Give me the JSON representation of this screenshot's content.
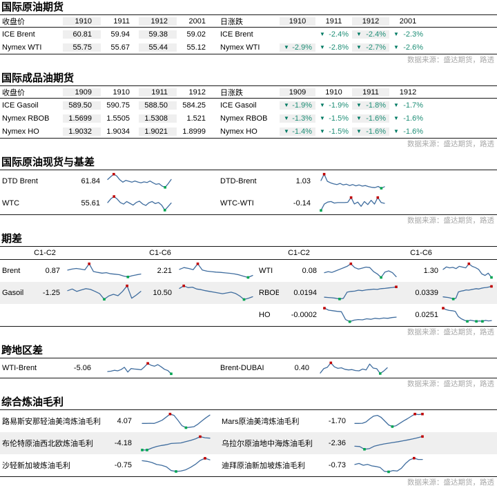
{
  "source_note": "数据来源：盛达期货，路透",
  "colors": {
    "down_triangle": "#007a63",
    "down_text": "#1e8e76",
    "spark_line": "#3e6c9e",
    "spark_high": "#c00000",
    "spark_low": "#00a551",
    "shade": "#efefef"
  },
  "sections": {
    "crude_futures": {
      "title": "国际原油期货",
      "close_label": "收盘价",
      "change_label": "日涨跌",
      "months": [
        "1910",
        "1911",
        "1912",
        "2001"
      ],
      "rows": [
        {
          "name": "ICE Brent",
          "close": [
            "60.81",
            "59.94",
            "59.38",
            "59.02"
          ],
          "change": [
            "",
            "-2.4%",
            "-2.4%",
            "-2.3%"
          ]
        },
        {
          "name": "Nymex WTI",
          "close": [
            "55.75",
            "55.67",
            "55.44",
            "55.12"
          ],
          "change": [
            "-2.9%",
            "-2.8%",
            "-2.7%",
            "-2.6%"
          ]
        }
      ]
    },
    "product_futures": {
      "title": "国际成品油期货",
      "close_label": "收盘价",
      "change_label": "日涨跌",
      "months": [
        "1909",
        "1910",
        "1911",
        "1912"
      ],
      "rows": [
        {
          "name": "ICE Gasoil",
          "close": [
            "589.50",
            "590.75",
            "588.50",
            "584.25"
          ],
          "change": [
            "-1.9%",
            "-1.9%",
            "-1.8%",
            "-1.7%"
          ]
        },
        {
          "name": "Nymex RBOB",
          "close": [
            "1.5699",
            "1.5505",
            "1.5308",
            "1.521"
          ],
          "change": [
            "-1.3%",
            "-1.5%",
            "-1.6%",
            "-1.6%"
          ]
        },
        {
          "name": "Nymex HO",
          "close": [
            "1.9032",
            "1.9034",
            "1.9021",
            "1.8999"
          ],
          "change": [
            "-1.4%",
            "-1.5%",
            "-1.6%",
            "-1.6%"
          ]
        }
      ]
    },
    "spot_basis": {
      "title": "国际原油现货与基差",
      "left": [
        {
          "name": "DTD Brent",
          "value": "61.84"
        },
        {
          "name": "WTC",
          "value": "55.61"
        }
      ],
      "right": [
        {
          "name": "DTD-Brent",
          "value": "1.03"
        },
        {
          "name": "WTC-WTI",
          "value": "-0.14"
        }
      ]
    },
    "term_spread": {
      "title": "期差",
      "col1": "C1-C2",
      "col2": "C1-C6",
      "left": [
        {
          "name": "Brent",
          "v1": "0.87",
          "v2": "2.21"
        },
        {
          "name": "Gasoil",
          "v1": "-1.25",
          "v2": "10.50"
        }
      ],
      "right": [
        {
          "name": "WTI",
          "v1": "0.08",
          "v2": "1.30"
        },
        {
          "name": "RBOB",
          "v1": "0.0194",
          "v2": "0.0339"
        },
        {
          "name": "HO",
          "v1": "-0.0002",
          "v2": "0.0251"
        }
      ]
    },
    "region_spread": {
      "title": "跨地区差",
      "left": [
        {
          "name": "WTI-Brent",
          "value": "-5.06"
        }
      ],
      "right": [
        {
          "name": "Brent-DUBAI",
          "value": "0.40"
        }
      ]
    },
    "refining_margin": {
      "title": "综合炼油毛利",
      "left": [
        {
          "name": "路易斯安那轻油美湾炼油毛利",
          "value": "4.07"
        },
        {
          "name": "布伦特原油西北欧炼油毛利",
          "value": "-4.18"
        },
        {
          "name": "沙轻新加坡炼油毛利",
          "value": "-0.75"
        }
      ],
      "right": [
        {
          "name": "Mars原油美湾炼油毛利",
          "value": "-1.70"
        },
        {
          "name": "乌拉尔原油地中海炼油毛利",
          "value": "-2.36"
        },
        {
          "name": "迪拜原油新加坡炼油毛利",
          "value": "-0.73"
        }
      ]
    }
  },
  "sparklines": {
    "dtd_brent": [
      0.62,
      0.8,
      0.97,
      0.85,
      0.6,
      0.44,
      0.56,
      0.5,
      0.44,
      0.52,
      0.45,
      0.4,
      0.46,
      0.42,
      0.52,
      0.4,
      0.3,
      0.34,
      0.18,
      0.1,
      0.34,
      0.62
    ],
    "wtc": [
      0.55,
      0.8,
      0.95,
      0.78,
      0.55,
      0.45,
      0.62,
      0.5,
      0.38,
      0.56,
      0.64,
      0.46,
      0.36,
      0.54,
      0.62,
      0.48,
      0.56,
      0.38,
      0.05,
      0.28,
      0.52
    ],
    "dtd_brent_basis": [
      0.55,
      0.97,
      0.5,
      0.4,
      0.33,
      0.28,
      0.36,
      0.26,
      0.31,
      0.22,
      0.28,
      0.2,
      0.26,
      0.18,
      0.22,
      0.15,
      0.1,
      0.08,
      0.16,
      0.04,
      0.14
    ],
    "wtc_wti": [
      0.03,
      0.45,
      0.58,
      0.62,
      0.52,
      0.55,
      0.55,
      0.55,
      0.57,
      0.88,
      0.46,
      0.58,
      0.3,
      0.62,
      0.42,
      0.7,
      0.45,
      0.88,
      0.55,
      0.5
    ],
    "brent_c1c2": [
      0.55,
      0.62,
      0.66,
      0.62,
      0.57,
      0.97,
      0.46,
      0.4,
      0.35,
      0.38,
      0.31,
      0.28,
      0.25,
      0.16,
      0.1,
      0.18,
      0.24,
      0.29
    ],
    "brent_c1c6": [
      0.6,
      0.72,
      0.66,
      0.58,
      0.97,
      0.56,
      0.48,
      0.45,
      0.42,
      0.4,
      0.37,
      0.34,
      0.3,
      0.24,
      0.15,
      0.07,
      0.2
    ],
    "gasoil_c1c2": [
      0.65,
      0.76,
      0.6,
      0.7,
      0.78,
      0.73,
      0.6,
      0.45,
      0.08,
      0.3,
      0.41,
      0.32,
      0.6,
      0.97,
      0.15,
      0.36,
      0.6
    ],
    "gasoil_c1c6": [
      0.8,
      0.97,
      0.85,
      0.88,
      0.76,
      0.72,
      0.65,
      0.6,
      0.55,
      0.5,
      0.45,
      0.5,
      0.55,
      0.47,
      0.3,
      0.07,
      0.15,
      0.25
    ],
    "wti_c1c2": [
      0.38,
      0.45,
      0.4,
      0.5,
      0.6,
      0.7,
      0.8,
      0.97,
      0.72,
      0.62,
      0.68,
      0.75,
      0.72,
      0.45,
      0.3,
      0.07,
      0.42,
      0.5,
      0.38,
      0.12
    ],
    "wti_c1c6": [
      0.6,
      0.76,
      0.7,
      0.73,
      0.65,
      0.8,
      0.75,
      0.7,
      0.97,
      0.8,
      0.72,
      0.6,
      0.3,
      0.2,
      0.35,
      0.07
    ],
    "rbob_c1c2": [
      0.22,
      0.2,
      0.18,
      0.15,
      0.1,
      0.14,
      0.55,
      0.6,
      0.62,
      0.68,
      0.65,
      0.7,
      0.72,
      0.75,
      0.73,
      0.78,
      0.8,
      0.83,
      0.86,
      0.9
    ],
    "rbob_c1c6": [
      0.24,
      0.22,
      0.2,
      0.16,
      0.1,
      0.15,
      0.57,
      0.62,
      0.65,
      0.7,
      0.68,
      0.72,
      0.75,
      0.78,
      0.76,
      0.81,
      0.84,
      0.86,
      0.89,
      0.93
    ],
    "ho_c1c2": [
      0.95,
      0.82,
      0.78,
      0.74,
      0.72,
      0.2,
      0.06,
      0.16,
      0.2,
      0.18,
      0.25,
      0.22,
      0.28,
      0.25,
      0.3,
      0.28,
      0.33,
      0.36
    ],
    "ho_c1c6": [
      0.95,
      0.85,
      0.8,
      0.78,
      0.74,
      0.4,
      0.25,
      0.16,
      0.08,
      0.16,
      0.12,
      0.08,
      0.11,
      0.08,
      0.15,
      0.11,
      0.13
    ],
    "wti_brent": [
      0.22,
      0.25,
      0.32,
      0.28,
      0.38,
      0.56,
      0.18,
      0.46,
      0.42,
      0.4,
      0.36,
      0.6,
      0.88,
      0.72,
      0.65,
      0.78,
      0.6,
      0.4,
      0.3,
      0.04
    ],
    "brent_dubai": [
      0.1,
      0.46,
      0.56,
      0.92,
      0.6,
      0.48,
      0.52,
      0.4,
      0.35,
      0.38,
      0.3,
      0.28,
      0.42,
      0.35,
      0.82,
      0.5,
      0.45,
      0.06,
      0.26,
      0.52
    ],
    "margin_lls_usgc": [
      0.35,
      0.35,
      0.36,
      0.35,
      0.45,
      0.56,
      0.76,
      0.97,
      0.88,
      0.55,
      0.2,
      0.07,
      0.1,
      0.13,
      0.3,
      0.52,
      0.72,
      0.9
    ],
    "margin_brent_nwe": [
      0.05,
      0.05,
      0.18,
      0.28,
      0.35,
      0.4,
      0.48,
      0.5,
      0.52,
      0.6,
      0.68,
      0.78,
      0.93,
      0.86,
      0.83
    ],
    "margin_saudi_sg": [
      0.8,
      0.76,
      0.68,
      0.55,
      0.5,
      0.4,
      0.15,
      0.09,
      0.12,
      0.2,
      0.36,
      0.56,
      0.82,
      0.96,
      0.86
    ],
    "margin_mars_usgc": [
      0.35,
      0.35,
      0.36,
      0.45,
      0.66,
      0.83,
      0.88,
      0.75,
      0.5,
      0.25,
      0.14,
      0.2,
      0.36,
      0.52,
      0.66,
      0.82,
      0.97,
      0.93,
      0.97
    ],
    "margin_urals_med": [
      0.3,
      0.28,
      0.1,
      0.14,
      0.3,
      0.38,
      0.45,
      0.5,
      0.55,
      0.6,
      0.66,
      0.72,
      0.78,
      0.86,
      0.94
    ],
    "margin_dubai_sg": [
      0.55,
      0.62,
      0.5,
      0.56,
      0.46,
      0.42,
      0.35,
      0.1,
      0.07,
      0.15,
      0.12,
      0.3,
      0.62,
      0.86,
      0.97,
      0.88,
      0.88
    ]
  }
}
